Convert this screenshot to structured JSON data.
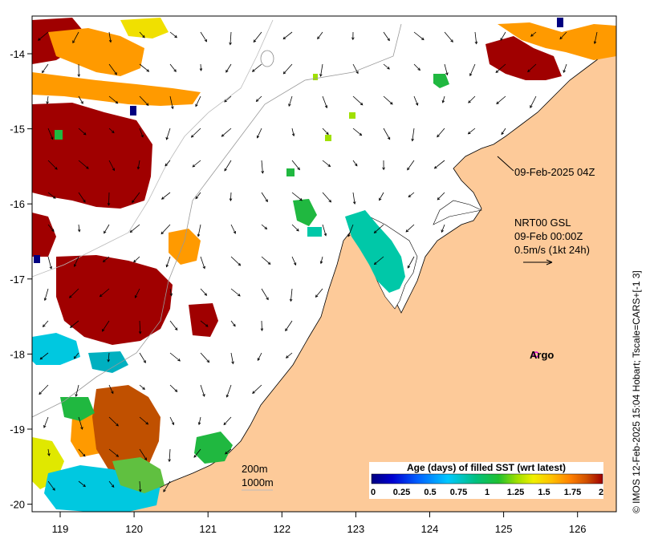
{
  "map": {
    "x_ticks": [
      "119",
      "120",
      "121",
      "122",
      "123",
      "124",
      "125",
      "126"
    ],
    "y_ticks": [
      "-14",
      "-15",
      "-16",
      "-17",
      "-18",
      "-19",
      "-20"
    ],
    "timestamp_label": "09-Feb-2025 04Z",
    "current_info": {
      "line1": "NRT00 GSL",
      "line2": "09-Feb 00:00Z",
      "line3": "0.5m/s (1kt 24h)"
    },
    "argo_label": "Argo",
    "contour_200": "200m",
    "contour_1000": "1000m",
    "credit": "© IMOS 12-Feb-2025 15:04 Hobart; Tscale=CARS+[-1 3]",
    "colors": {
      "land": "#fdca99",
      "ocean": "#ffffff",
      "argo": "#e000e0"
    }
  },
  "colorbar": {
    "title": "Age (days) of filled SST (wrt latest)",
    "tick_labels": [
      "0",
      "0.25",
      "0.5",
      "0.75",
      "1",
      "1.25",
      "1.5",
      "1.75",
      "2"
    ],
    "colors": [
      "#000080",
      "#0000d0",
      "#0060ff",
      "#00c0ff",
      "#00d0a0",
      "#20c040",
      "#a0e000",
      "#f0f000",
      "#ffc000",
      "#ff8000",
      "#d05000",
      "#a00000"
    ]
  }
}
